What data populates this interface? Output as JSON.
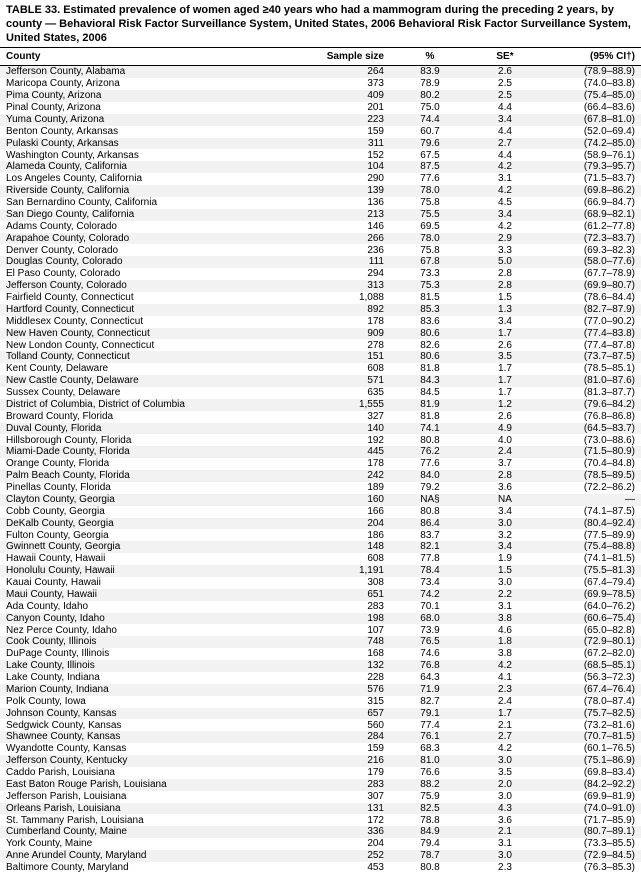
{
  "title": "TABLE 33. Estimated prevalence of women aged ≥40 years who had a mammogram during the preceding 2 years, by county — Behavioral Risk Factor Surveillance System, United States, 2006 Behavioral Risk Factor Surveillance System, United States, 2006",
  "columns": {
    "county": "County",
    "n": "Sample size",
    "pct": "%",
    "se": "SE*",
    "ci": "(95% CI†)"
  },
  "rows": [
    {
      "county": "Jefferson County, Alabama",
      "n": "264",
      "pct": "83.9",
      "se": "2.6",
      "ci": "(78.9–88.9)"
    },
    {
      "county": "Maricopa County, Arizona",
      "n": "373",
      "pct": "78.9",
      "se": "2.5",
      "ci": "(74.0–83.8)"
    },
    {
      "county": "Pima County, Arizona",
      "n": "409",
      "pct": "80.2",
      "se": "2.5",
      "ci": "(75.4–85.0)"
    },
    {
      "county": "Pinal County, Arizona",
      "n": "201",
      "pct": "75.0",
      "se": "4.4",
      "ci": "(66.4–83.6)"
    },
    {
      "county": "Yuma County, Arizona",
      "n": "223",
      "pct": "74.4",
      "se": "3.4",
      "ci": "(67.8–81.0)"
    },
    {
      "county": "Benton County, Arkansas",
      "n": "159",
      "pct": "60.7",
      "se": "4.4",
      "ci": "(52.0–69.4)"
    },
    {
      "county": "Pulaski County, Arkansas",
      "n": "311",
      "pct": "79.6",
      "se": "2.7",
      "ci": "(74.2–85.0)"
    },
    {
      "county": "Washington County, Arkansas",
      "n": "152",
      "pct": "67.5",
      "se": "4.4",
      "ci": "(58.9–76.1)"
    },
    {
      "county": "Alameda County, California",
      "n": "104",
      "pct": "87.5",
      "se": "4.2",
      "ci": "(79.3–95.7)"
    },
    {
      "county": "Los Angeles County, California",
      "n": "290",
      "pct": "77.6",
      "se": "3.1",
      "ci": "(71.5–83.7)"
    },
    {
      "county": "Riverside County, California",
      "n": "139",
      "pct": "78.0",
      "se": "4.2",
      "ci": "(69.8–86.2)"
    },
    {
      "county": "San Bernardino County, California",
      "n": "136",
      "pct": "75.8",
      "se": "4.5",
      "ci": "(66.9–84.7)"
    },
    {
      "county": "San Diego County, California",
      "n": "213",
      "pct": "75.5",
      "se": "3.4",
      "ci": "(68.9–82.1)"
    },
    {
      "county": "Adams County, Colorado",
      "n": "146",
      "pct": "69.5",
      "se": "4.2",
      "ci": "(61.2–77.8)"
    },
    {
      "county": "Arapahoe County, Colorado",
      "n": "266",
      "pct": "78.0",
      "se": "2.9",
      "ci": "(72.3–83.7)"
    },
    {
      "county": "Denver County, Colorado",
      "n": "236",
      "pct": "75.8",
      "se": "3.3",
      "ci": "(69.3–82.3)"
    },
    {
      "county": "Douglas County, Colorado",
      "n": "111",
      "pct": "67.8",
      "se": "5.0",
      "ci": "(58.0–77.6)"
    },
    {
      "county": "El Paso County, Colorado",
      "n": "294",
      "pct": "73.3",
      "se": "2.8",
      "ci": "(67.7–78.9)"
    },
    {
      "county": "Jefferson County, Colorado",
      "n": "313",
      "pct": "75.3",
      "se": "2.8",
      "ci": "(69.9–80.7)"
    },
    {
      "county": "Fairfield County, Connecticut",
      "n": "1,088",
      "pct": "81.5",
      "se": "1.5",
      "ci": "(78.6–84.4)"
    },
    {
      "county": "Hartford County, Connecticut",
      "n": "892",
      "pct": "85.3",
      "se": "1.3",
      "ci": "(82.7–87.9)"
    },
    {
      "county": "Middlesex County, Connecticut",
      "n": "178",
      "pct": "83.6",
      "se": "3.4",
      "ci": "(77.0–90.2)"
    },
    {
      "county": "New Haven County, Connecticut",
      "n": "909",
      "pct": "80.6",
      "se": "1.7",
      "ci": "(77.4–83.8)"
    },
    {
      "county": "New London County, Connecticut",
      "n": "278",
      "pct": "82.6",
      "se": "2.6",
      "ci": "(77.4–87.8)"
    },
    {
      "county": "Tolland County, Connecticut",
      "n": "151",
      "pct": "80.6",
      "se": "3.5",
      "ci": "(73.7–87.5)"
    },
    {
      "county": "Kent County, Delaware",
      "n": "608",
      "pct": "81.8",
      "se": "1.7",
      "ci": "(78.5–85.1)"
    },
    {
      "county": "New Castle County, Delaware",
      "n": "571",
      "pct": "84.3",
      "se": "1.7",
      "ci": "(81.0–87.6)"
    },
    {
      "county": "Sussex County, Delaware",
      "n": "635",
      "pct": "84.5",
      "se": "1.7",
      "ci": "(81.3–87.7)"
    },
    {
      "county": "District of Columbia, District of Columbia",
      "n": "1,555",
      "pct": "81.9",
      "se": "1.2",
      "ci": "(79.6–84.2)"
    },
    {
      "county": "Broward County, Florida",
      "n": "327",
      "pct": "81.8",
      "se": "2.6",
      "ci": "(76.8–86.8)"
    },
    {
      "county": "Duval County, Florida",
      "n": "140",
      "pct": "74.1",
      "se": "4.9",
      "ci": "(64.5–83.7)"
    },
    {
      "county": "Hillsborough County, Florida",
      "n": "192",
      "pct": "80.8",
      "se": "4.0",
      "ci": "(73.0–88.6)"
    },
    {
      "county": "Miami-Dade County, Florida",
      "n": "445",
      "pct": "76.2",
      "se": "2.4",
      "ci": "(71.5–80.9)"
    },
    {
      "county": "Orange County, Florida",
      "n": "178",
      "pct": "77.6",
      "se": "3.7",
      "ci": "(70.4–84.8)"
    },
    {
      "county": "Palm Beach County, Florida",
      "n": "242",
      "pct": "84.0",
      "se": "2.8",
      "ci": "(78.5–89.5)"
    },
    {
      "county": "Pinellas County, Florida",
      "n": "189",
      "pct": "79.2",
      "se": "3.6",
      "ci": "(72.2–86.2)"
    },
    {
      "county": "Clayton County, Georgia",
      "n": "160",
      "pct": "NA§",
      "se": "NA",
      "ci": "—"
    },
    {
      "county": "Cobb County, Georgia",
      "n": "166",
      "pct": "80.8",
      "se": "3.4",
      "ci": "(74.1–87.5)"
    },
    {
      "county": "DeKalb County, Georgia",
      "n": "204",
      "pct": "86.4",
      "se": "3.0",
      "ci": "(80.4–92.4)"
    },
    {
      "county": "Fulton County, Georgia",
      "n": "186",
      "pct": "83.7",
      "se": "3.2",
      "ci": "(77.5–89.9)"
    },
    {
      "county": "Gwinnett County, Georgia",
      "n": "148",
      "pct": "82.1",
      "se": "3.4",
      "ci": "(75.4–88.8)"
    },
    {
      "county": "Hawaii County, Hawaii",
      "n": "608",
      "pct": "77.8",
      "se": "1.9",
      "ci": "(74.1–81.5)"
    },
    {
      "county": "Honolulu County, Hawaii",
      "n": "1,191",
      "pct": "78.4",
      "se": "1.5",
      "ci": "(75.5–81.3)"
    },
    {
      "county": "Kauai County, Hawaii",
      "n": "308",
      "pct": "73.4",
      "se": "3.0",
      "ci": "(67.4–79.4)"
    },
    {
      "county": "Maui County, Hawaii",
      "n": "651",
      "pct": "74.2",
      "se": "2.2",
      "ci": "(69.9–78.5)"
    },
    {
      "county": "Ada County, Idaho",
      "n": "283",
      "pct": "70.1",
      "se": "3.1",
      "ci": "(64.0–76.2)"
    },
    {
      "county": "Canyon County, Idaho",
      "n": "198",
      "pct": "68.0",
      "se": "3.8",
      "ci": "(60.6–75.4)"
    },
    {
      "county": "Nez Perce County, Idaho",
      "n": "107",
      "pct": "73.9",
      "se": "4.6",
      "ci": "(65.0–82.8)"
    },
    {
      "county": "Cook County, Illinois",
      "n": "748",
      "pct": "76.5",
      "se": "1.8",
      "ci": "(72.9–80.1)"
    },
    {
      "county": "DuPage County, Illinois",
      "n": "168",
      "pct": "74.6",
      "se": "3.8",
      "ci": "(67.2–82.0)"
    },
    {
      "county": "Lake County, Illinois",
      "n": "132",
      "pct": "76.8",
      "se": "4.2",
      "ci": "(68.5–85.1)"
    },
    {
      "county": "Lake County, Indiana",
      "n": "228",
      "pct": "64.3",
      "se": "4.1",
      "ci": "(56.3–72.3)"
    },
    {
      "county": "Marion County, Indiana",
      "n": "576",
      "pct": "71.9",
      "se": "2.3",
      "ci": "(67.4–76.4)"
    },
    {
      "county": "Polk County, Iowa",
      "n": "315",
      "pct": "82.7",
      "se": "2.4",
      "ci": "(78.0–87.4)"
    },
    {
      "county": "Johnson County, Kansas",
      "n": "657",
      "pct": "79.1",
      "se": "1.7",
      "ci": "(75.7–82.5)"
    },
    {
      "county": "Sedgwick County, Kansas",
      "n": "560",
      "pct": "77.4",
      "se": "2.1",
      "ci": "(73.2–81.6)"
    },
    {
      "county": "Shawnee County, Kansas",
      "n": "284",
      "pct": "76.1",
      "se": "2.7",
      "ci": "(70.7–81.5)"
    },
    {
      "county": "Wyandotte County, Kansas",
      "n": "159",
      "pct": "68.3",
      "se": "4.2",
      "ci": "(60.1–76.5)"
    },
    {
      "county": "Jefferson County, Kentucky",
      "n": "216",
      "pct": "81.0",
      "se": "3.0",
      "ci": "(75.1–86.9)"
    },
    {
      "county": "Caddo Parish, Louisiana",
      "n": "179",
      "pct": "76.6",
      "se": "3.5",
      "ci": "(69.8–83.4)"
    },
    {
      "county": "East Baton Rouge Parish, Louisiana",
      "n": "283",
      "pct": "88.2",
      "se": "2.0",
      "ci": "(84.2–92.2)"
    },
    {
      "county": "Jefferson Parish, Louisiana",
      "n": "307",
      "pct": "75.9",
      "se": "3.0",
      "ci": "(69.9–81.9)"
    },
    {
      "county": "Orleans Parish, Louisiana",
      "n": "131",
      "pct": "82.5",
      "se": "4.3",
      "ci": "(74.0–91.0)"
    },
    {
      "county": "St. Tammany Parish, Louisiana",
      "n": "172",
      "pct": "78.8",
      "se": "3.6",
      "ci": "(71.7–85.9)"
    },
    {
      "county": "Cumberland County, Maine",
      "n": "336",
      "pct": "84.9",
      "se": "2.1",
      "ci": "(80.7–89.1)"
    },
    {
      "county": "York County, Maine",
      "n": "204",
      "pct": "79.4",
      "se": "3.1",
      "ci": "(73.3–85.5)"
    },
    {
      "county": "Anne Arundel County, Maryland",
      "n": "252",
      "pct": "78.7",
      "se": "3.0",
      "ci": "(72.9–84.5)"
    },
    {
      "county": "Baltimore County, Maryland",
      "n": "453",
      "pct": "80.8",
      "se": "2.3",
      "ci": "(76.3–85.3)"
    }
  ],
  "style": {
    "title_fontsize": 11,
    "row_fontsize": 10,
    "odd_row_bg": "#f2f2f2",
    "even_row_bg": "#ffffff",
    "text_color": "#000000"
  }
}
